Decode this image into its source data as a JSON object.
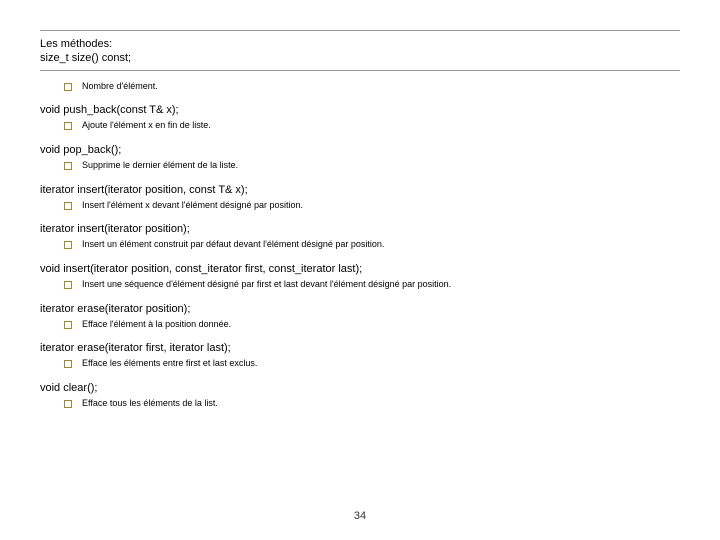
{
  "title": {
    "line1": "Les méthodes:",
    "line2": "size_t size() const;"
  },
  "items": [
    {
      "desc": "Nombre d'élément."
    },
    {
      "method": "void push_back(const T& x);",
      "desc": "Ajoute l'élément x en fin de liste."
    },
    {
      "method": "void pop_back();",
      "desc": "Supprime le dernier élément de la liste."
    },
    {
      "method": "iterator insert(iterator position, const T& x);",
      "desc": "Insert l'élément x devant l'élément désigné par position."
    },
    {
      "method": "iterator insert(iterator position);",
      "desc": "Insert un élément construit par défaut devant l'élément désigné par position."
    },
    {
      "method": "void insert(iterator position, const_iterator first, const_iterator last);",
      "desc": "Insert une séquence d'élément désigné par first et last devant l'élément désigné par position."
    },
    {
      "method": "iterator erase(iterator position);",
      "desc": "Efface l'élément à la position donnée."
    },
    {
      "method": "iterator erase(iterator first, iterator last);",
      "desc": "Efface les éléments entre first et last exclus."
    },
    {
      "method": "void clear();",
      "desc": "Efface tous les éléments de la list."
    }
  ],
  "pageNumber": "34"
}
